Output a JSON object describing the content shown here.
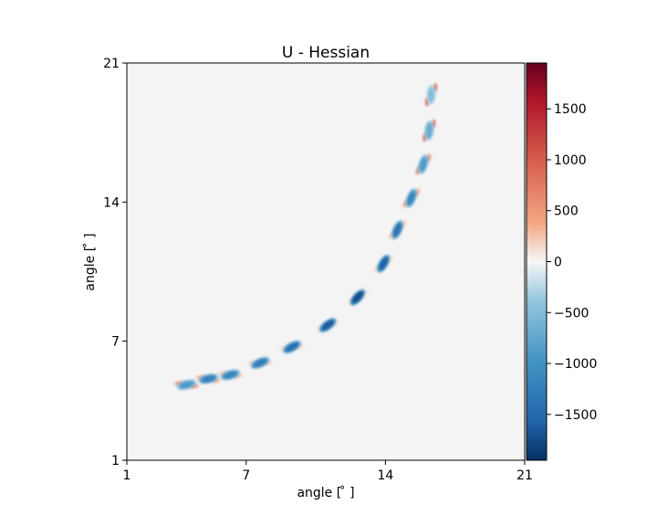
{
  "chart_data": {
    "type": "heatmap",
    "title": "U - Hessian",
    "xlabel": "angle [$^\\circ$]",
    "ylabel": "angle [$^\\circ$]",
    "xlabel_text": "angle [ ̊ ]",
    "ylabel_text": "angle [ ̊ ]",
    "xlim": [
      1,
      21
    ],
    "ylim": [
      1,
      21
    ],
    "xticks": [
      1,
      7,
      14,
      21
    ],
    "yticks": [
      1,
      7,
      14,
      21
    ],
    "background_color": "#f4f4f4",
    "colormap": "RdBu_r",
    "colorbar": {
      "vmin": -1950,
      "vmax": 1950,
      "ticks": [
        1500,
        1000,
        500,
        0,
        -500,
        -1000,
        -1500
      ],
      "tick_labels": [
        "1500",
        "1000",
        "500",
        "0",
        "−500",
        "−1000",
        "−1500"
      ]
    },
    "blobs": [
      {
        "x": 4.0,
        "y": 4.8,
        "core": -900,
        "edge": 600
      },
      {
        "x": 5.1,
        "y": 5.1,
        "core": -1200,
        "edge": 350
      },
      {
        "x": 6.2,
        "y": 5.3,
        "core": -1150,
        "edge": 250
      },
      {
        "x": 7.7,
        "y": 5.9,
        "core": -1300,
        "edge": 200
      },
      {
        "x": 9.3,
        "y": 6.7,
        "core": -1450,
        "edge": 150
      },
      {
        "x": 11.1,
        "y": 7.8,
        "core": -1650,
        "edge": 100
      },
      {
        "x": 12.6,
        "y": 9.2,
        "core": -1750,
        "edge": 100
      },
      {
        "x": 13.9,
        "y": 10.9,
        "core": -1600,
        "edge": 150
      },
      {
        "x": 14.6,
        "y": 12.6,
        "core": -1400,
        "edge": 250
      },
      {
        "x": 15.3,
        "y": 14.2,
        "core": -1150,
        "edge": 450
      },
      {
        "x": 15.9,
        "y": 15.9,
        "core": -900,
        "edge": 750
      },
      {
        "x": 16.2,
        "y": 17.6,
        "core": -700,
        "edge": 900
      },
      {
        "x": 16.3,
        "y": 19.4,
        "core": -500,
        "edge": 1000
      }
    ]
  }
}
